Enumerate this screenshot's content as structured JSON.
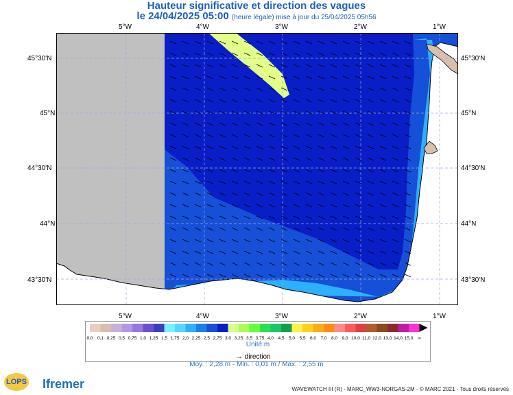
{
  "header": {
    "title": "Hauteur significative et direction des vagues",
    "date_line": "le 24/04/2025 05:00",
    "date_note": "(heure légale) mise à jour du 25/04/2025 05h56"
  },
  "axes": {
    "lon_labels": [
      "5°W",
      "4°W",
      "3°W",
      "2°W",
      "1°W"
    ],
    "lat_labels": [
      "45°30'N",
      "45°N",
      "44°30'N",
      "44°N",
      "43°30'N"
    ]
  },
  "legend": {
    "values": [
      "0,0",
      "0,1",
      "0,25",
      "0,5",
      "0,75",
      "1,0",
      "1,25",
      "1,5",
      "1,75",
      "2,0",
      "2,25",
      "2,5",
      "2,75",
      "3,0",
      "3,25",
      "3,5",
      "3,75",
      "4,0",
      "4,5",
      "5,0",
      "5,5",
      "6,0",
      "7,0",
      "8,0",
      "9,0",
      "10,0",
      "11,0",
      "12,0",
      "13,0",
      "14,0",
      "15,0",
      "∞"
    ],
    "colors": [
      "#e7cfbf",
      "#d9bfae",
      "#c8b0d8",
      "#b397e6",
      "#9478e0",
      "#6a4fd0",
      "#3c3cc0",
      "#78f2ff",
      "#54d8ff",
      "#2db0ff",
      "#1a7fe6",
      "#1650d8",
      "#0a1ec8",
      "#d6ff8a",
      "#a8ff50",
      "#62ff3a",
      "#2adf4e",
      "#17c86a",
      "#0ea34a",
      "#fff04a",
      "#ffd21a",
      "#ffab15",
      "#ff8a12",
      "#ff8a8a",
      "#ff5a5a",
      "#e04040",
      "#b25a2a",
      "#8a4a1a",
      "#8c2a2a",
      "#c01ca0",
      "#ff2fd8"
    ],
    "unit": "Unité:m",
    "direction_label": "direction"
  },
  "stats": "Moy. : 2,28 m   -   Min. : 0,01 m / Max. : 2,55 m",
  "footer": "WAVEWATCH III (R) - MARC_WW3-NORGAS-2M - © MARC 2021 - Tous droits réservés",
  "logos": {
    "lops": "LOPS",
    "ifremer": "Ifremer"
  }
}
